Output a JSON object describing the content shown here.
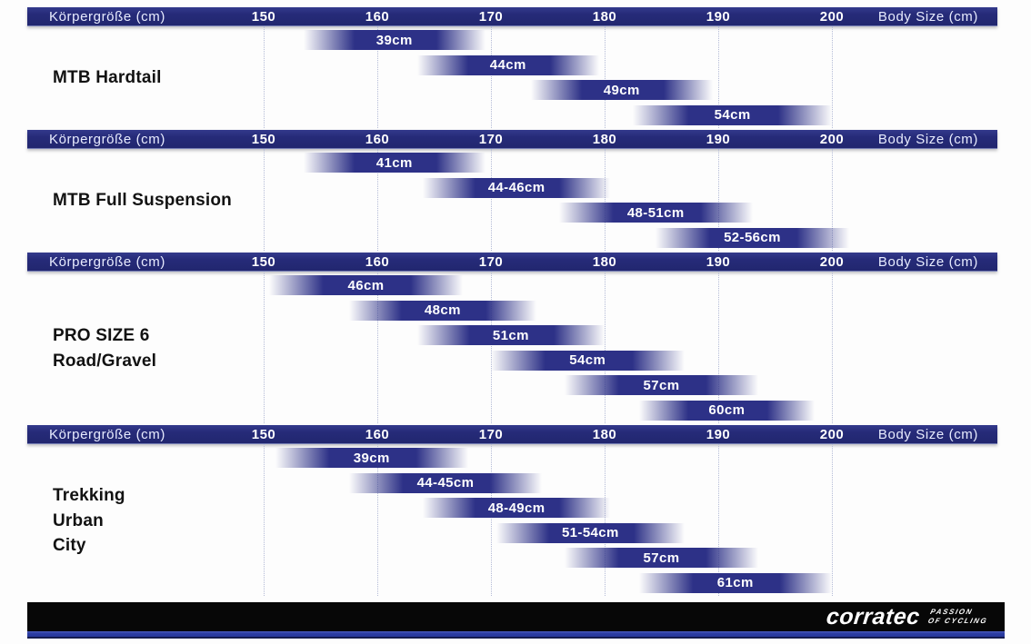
{
  "axis": {
    "left_label": "Körpergröße (cm)",
    "right_label": "Body Size (cm)",
    "ticks": [
      150,
      160,
      170,
      180,
      190,
      200
    ],
    "min_cm": 150,
    "max_cm": 200
  },
  "sections": [
    {
      "label_lines": [
        "MTB Hardtail"
      ]
    },
    {
      "label_lines": [
        "MTB Full Suspension"
      ]
    },
    {
      "label_lines": [
        "PRO SIZE 6",
        "Road/Gravel"
      ]
    },
    {
      "label_lines": [
        "Trekking",
        "Urban",
        "City"
      ]
    }
  ],
  "footer": {
    "brand": "corratec",
    "tagline_lines": [
      "PASSION",
      "OF CYCLING"
    ]
  },
  "colors": {
    "header_navy": "#262b79",
    "bar_navy": "#2d3187",
    "grid_dotted": "#b4bbd6",
    "footer_black": "#070707",
    "footer_blue": "#2c3da2",
    "text_white": "#ffffff",
    "category_black": "#121212"
  },
  "chart_data": {
    "type": "bar",
    "subtype": "horizontal-range-gantt",
    "xlabel": "Körpergröße (cm) / Body Size (cm)",
    "x_ticks": [
      150,
      160,
      170,
      180,
      190,
      200
    ],
    "xlim": [
      150,
      200
    ],
    "grid": "dotted-vertical",
    "legend_position": "none",
    "groups": [
      {
        "name": "MTB Hardtail",
        "bars": [
          {
            "label": "39cm",
            "range_cm": [
              153.5,
              169.5
            ]
          },
          {
            "label": "44cm",
            "range_cm": [
              163.5,
              179.5
            ]
          },
          {
            "label": "49cm",
            "range_cm": [
              173.5,
              189.5
            ]
          },
          {
            "label": "54cm",
            "range_cm": [
              182.5,
              200.0
            ]
          }
        ]
      },
      {
        "name": "MTB Full Suspension",
        "bars": [
          {
            "label": "41cm",
            "range_cm": [
              153.5,
              169.5
            ]
          },
          {
            "label": "44-46cm",
            "range_cm": [
              164.0,
              180.5
            ]
          },
          {
            "label": "48-51cm",
            "range_cm": [
              176.0,
              193.0
            ]
          },
          {
            "label": "52-56cm",
            "range_cm": [
              184.5,
              201.5
            ]
          }
        ]
      },
      {
        "name": "PRO SIZE 6 Road/Gravel",
        "bars": [
          {
            "label": "46cm",
            "range_cm": [
              150.5,
              167.5
            ]
          },
          {
            "label": "48cm",
            "range_cm": [
              157.5,
              174.0
            ]
          },
          {
            "label": "51cm",
            "range_cm": [
              163.5,
              180.0
            ]
          },
          {
            "label": "54cm",
            "range_cm": [
              170.0,
              187.0
            ]
          },
          {
            "label": "57cm",
            "range_cm": [
              176.5,
              193.5
            ]
          },
          {
            "label": "60cm",
            "range_cm": [
              183.0,
              198.5
            ]
          }
        ]
      },
      {
        "name": "Trekking Urban City",
        "bars": [
          {
            "label": "39cm",
            "range_cm": [
              151.0,
              168.0
            ]
          },
          {
            "label": "44-45cm",
            "range_cm": [
              157.5,
              174.5
            ]
          },
          {
            "label": "48-49cm",
            "range_cm": [
              164.0,
              180.5
            ]
          },
          {
            "label": "51-54cm",
            "range_cm": [
              170.5,
              187.0
            ]
          },
          {
            "label": "57cm",
            "range_cm": [
              176.5,
              193.5
            ]
          },
          {
            "label": "61cm",
            "range_cm": [
              183.0,
              200.0
            ]
          }
        ]
      }
    ]
  }
}
